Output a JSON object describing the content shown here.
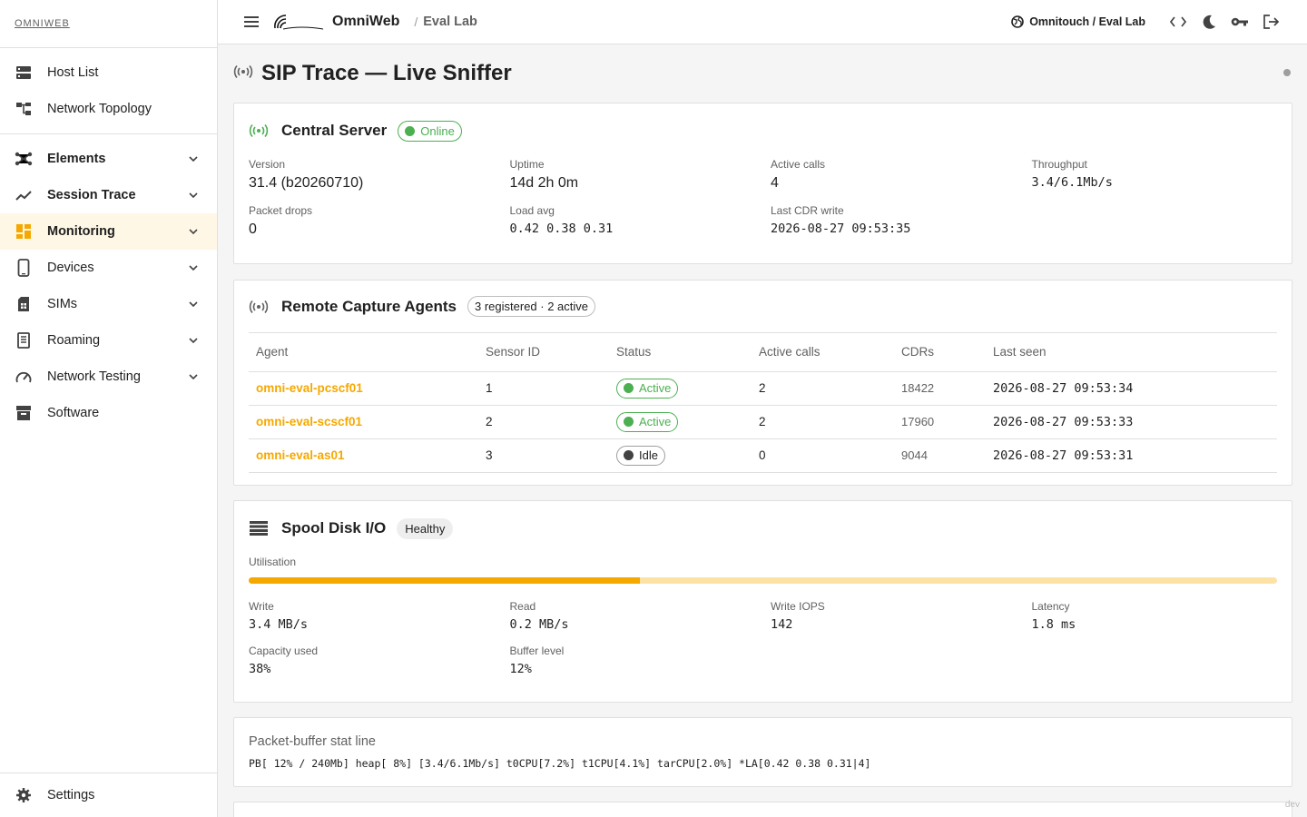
{
  "sidebar": {
    "brand": "OMNIWEB",
    "top_items": [
      {
        "label": "Host List"
      },
      {
        "label": "Network Topology"
      }
    ],
    "groups": [
      {
        "label": "Elements"
      },
      {
        "label": "Session Trace"
      },
      {
        "label": "Monitoring"
      },
      {
        "label": "Devices"
      },
      {
        "label": "SIMs"
      },
      {
        "label": "Roaming"
      },
      {
        "label": "Network Testing"
      },
      {
        "label": "Software"
      }
    ],
    "settings": "Settings"
  },
  "header": {
    "app_name": "OmniWeb",
    "crumb_sep": "/",
    "crumb": "Eval Lab",
    "tenant": "Omnitouch / Eval Lab"
  },
  "page": {
    "title": "SIP Trace — Live Sniffer"
  },
  "central": {
    "title": "Central Server",
    "status": "Online",
    "stats": [
      {
        "label": "Version",
        "value": "31.4 (b20260710)"
      },
      {
        "label": "Uptime",
        "value": "14d 2h 0m"
      },
      {
        "label": "Active calls",
        "value": "4"
      },
      {
        "label": "Throughput",
        "value": "3.4/6.1Mb/s"
      },
      {
        "label": "Packet drops",
        "value": "0"
      },
      {
        "label": "Load avg",
        "value": "0.42 0.38 0.31"
      },
      {
        "label": "Last CDR write",
        "value": "2026-08-27 09:53:35"
      }
    ]
  },
  "agents": {
    "title": "Remote Capture Agents",
    "summary": "3 registered · 2 active",
    "columns": [
      "Agent",
      "Sensor ID",
      "Status",
      "Active calls",
      "CDRs",
      "Last seen"
    ],
    "rows": [
      {
        "agent": "omni-eval-pcscf01",
        "sensor": "1",
        "status": "Active",
        "calls": "2",
        "cdrs": "18422",
        "seen": "2026-08-27 09:53:34"
      },
      {
        "agent": "omni-eval-scscf01",
        "sensor": "2",
        "status": "Active",
        "calls": "2",
        "cdrs": "17960",
        "seen": "2026-08-27 09:53:33"
      },
      {
        "agent": "omni-eval-as01",
        "sensor": "3",
        "status": "Idle",
        "calls": "0",
        "cdrs": "9044",
        "seen": "2026-08-27 09:53:31"
      }
    ]
  },
  "spool": {
    "title": "Spool Disk I/O",
    "status": "Healthy",
    "util_label": "Utilisation",
    "util_fraction": 0.38,
    "stats": [
      {
        "label": "Write",
        "value": "3.4 MB/s"
      },
      {
        "label": "Read",
        "value": "0.2 MB/s"
      },
      {
        "label": "Write IOPS",
        "value": "142"
      },
      {
        "label": "Latency",
        "value": "1.8 ms"
      },
      {
        "label": "Capacity used",
        "value": "38%"
      },
      {
        "label": "Buffer level",
        "value": "12%"
      }
    ]
  },
  "statline": {
    "title": "Packet-buffer stat line",
    "text": "PB[ 12% / 240Mb] heap[ 8%] [3.4/6.1Mb/s] t0CPU[7.2%] t1CPU[4.1%] tarCPU[2.0%] *LA[0.42 0.38 0.31|4]"
  },
  "footer": {
    "env": "dev"
  },
  "colors": {
    "accent": "#f5a800",
    "success": "#4caf50"
  }
}
